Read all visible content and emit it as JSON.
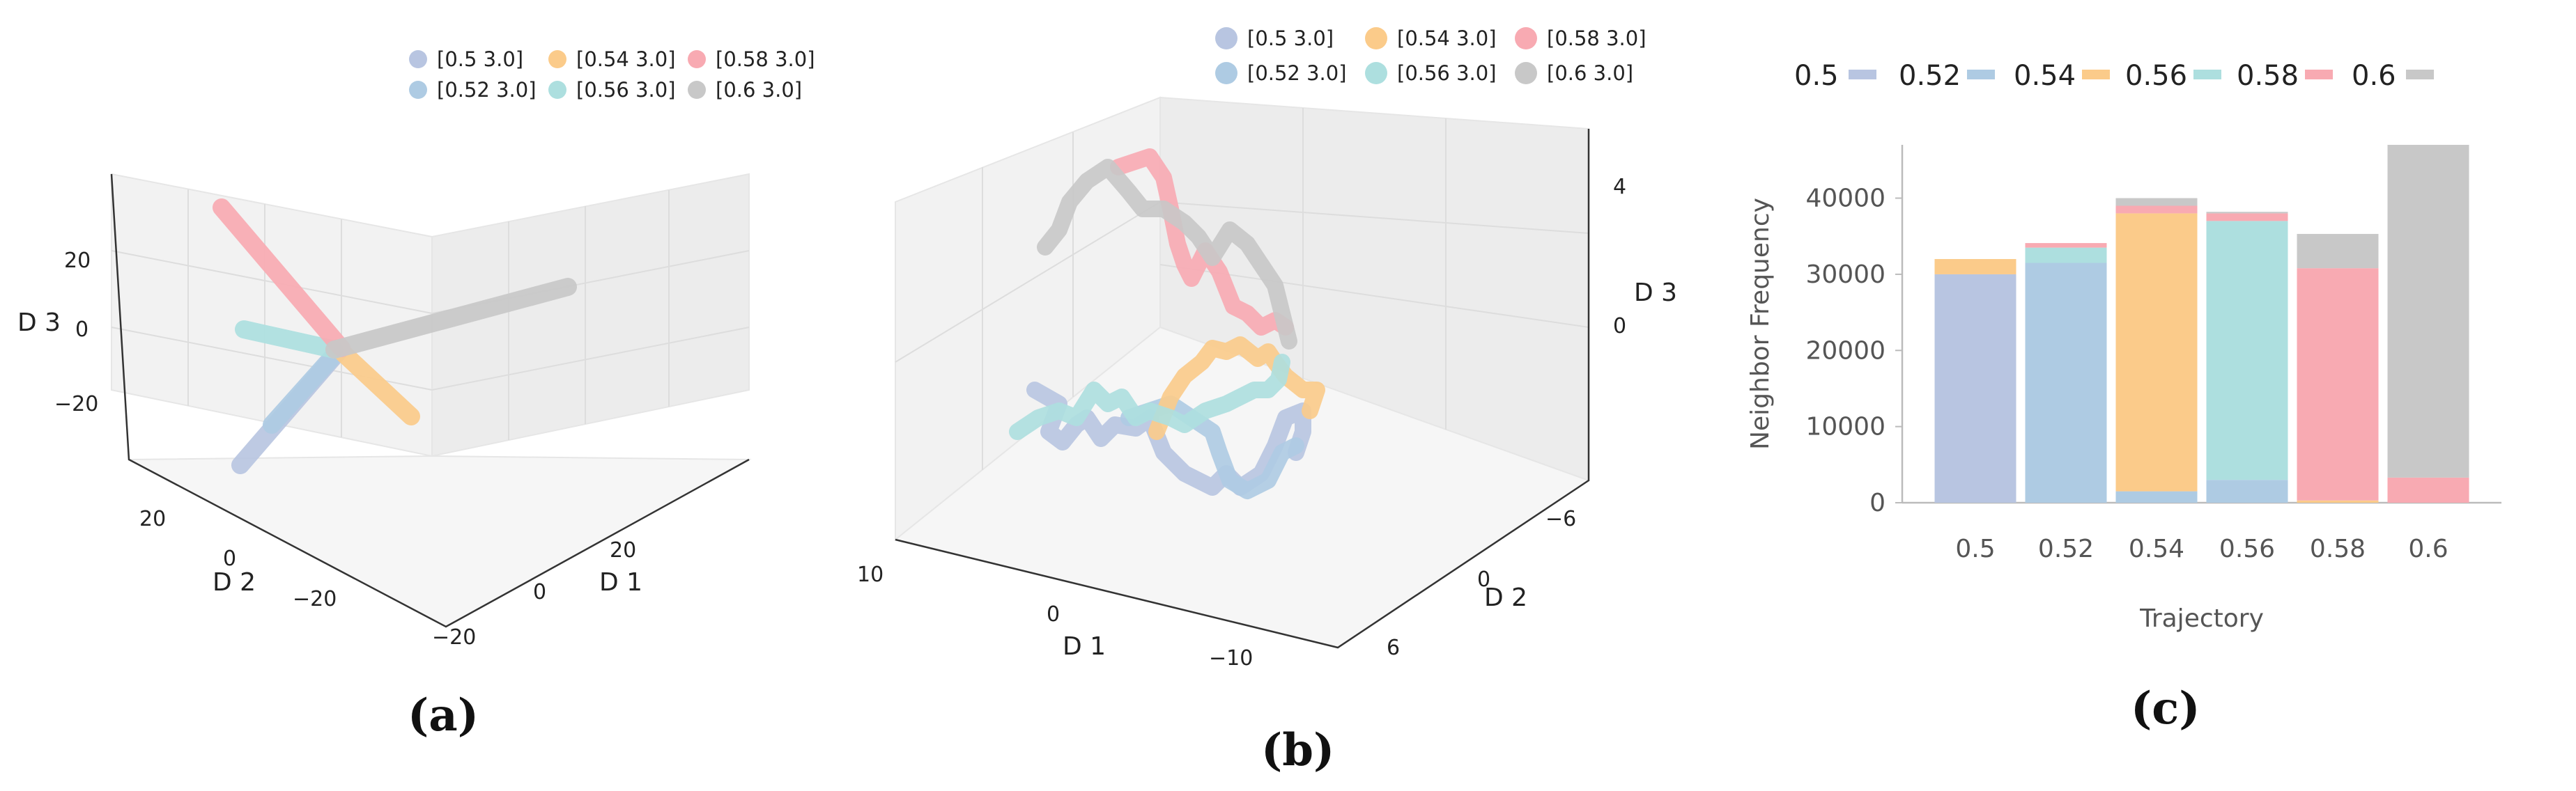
{
  "panel_labels": {
    "a": "(a)",
    "b": "(b)",
    "c": "(c)"
  },
  "colors": {
    "c05": "#b8c5e1",
    "c052": "#aecbe3",
    "c054": "#fbcb8a",
    "c056": "#addfdf",
    "c058": "#f8aab2",
    "c06": "#c8c8c8"
  },
  "chart_data": [
    {
      "id": "a",
      "type": "scatter",
      "projection": "3d",
      "title": "",
      "xlabel": "D 1",
      "ylabel": "D 2",
      "zlabel": "D 3",
      "x_ticks": [
        "−20",
        "0",
        "20"
      ],
      "y_ticks": [
        "20",
        "0",
        "−20"
      ],
      "z_ticks": [
        "20",
        "0",
        "−20"
      ],
      "legend_position": "top",
      "series": [
        {
          "name": "[0.5 3.0]",
          "color": "#b8c5e1"
        },
        {
          "name": "[0.52 3.0]",
          "color": "#aecbe3"
        },
        {
          "name": "[0.54 3.0]",
          "color": "#fbcb8a"
        },
        {
          "name": "[0.56 3.0]",
          "color": "#addfdf"
        },
        {
          "name": "[0.58 3.0]",
          "color": "#f8aab2"
        },
        {
          "name": "[0.6 3.0]",
          "color": "#c8c8c8"
        }
      ]
    },
    {
      "id": "b",
      "type": "scatter",
      "projection": "3d",
      "title": "",
      "xlabel": "D 1",
      "ylabel": "D 2",
      "zlabel": "D 3",
      "x_ticks": [
        "10",
        "0",
        "−10"
      ],
      "y_ticks": [
        "−6",
        "0",
        "6"
      ],
      "z_ticks": [
        "4",
        "0"
      ],
      "legend_position": "top",
      "series": [
        {
          "name": "[0.5 3.0]",
          "color": "#b8c5e1"
        },
        {
          "name": "[0.52 3.0]",
          "color": "#aecbe3"
        },
        {
          "name": "[0.54 3.0]",
          "color": "#fbcb8a"
        },
        {
          "name": "[0.56 3.0]",
          "color": "#addfdf"
        },
        {
          "name": "[0.58 3.0]",
          "color": "#f8aab2"
        },
        {
          "name": "[0.6 3.0]",
          "color": "#c8c8c8"
        }
      ]
    },
    {
      "id": "c",
      "type": "bar",
      "stacked": true,
      "title": "",
      "xlabel": "Trajectory",
      "ylabel": "Neighbor Frequency",
      "categories": [
        "0.5",
        "0.52",
        "0.54",
        "0.56",
        "0.58",
        "0.6"
      ],
      "ylim": [
        0,
        47000
      ],
      "yticks": [
        0,
        10000,
        20000,
        30000,
        40000
      ],
      "legend_position": "top",
      "series": [
        {
          "name": "0.5",
          "color": "#b8c5e1",
          "values": [
            30000,
            0,
            0,
            0,
            0,
            0
          ]
        },
        {
          "name": "0.52",
          "color": "#aecbe3",
          "values": [
            0,
            31500,
            1500,
            3000,
            0,
            0
          ]
        },
        {
          "name": "0.54",
          "color": "#fbcb8a",
          "values": [
            2000,
            0,
            36500,
            0,
            300,
            0
          ]
        },
        {
          "name": "0.56",
          "color": "#addfdf",
          "values": [
            0,
            2000,
            0,
            34000,
            0,
            0
          ]
        },
        {
          "name": "0.58",
          "color": "#f8aab2",
          "values": [
            0,
            600,
            1000,
            1000,
            30500,
            3300
          ]
        },
        {
          "name": "0.6",
          "color": "#c8c8c8",
          "values": [
            0,
            0,
            1000,
            200,
            4500,
            43700
          ]
        }
      ]
    }
  ]
}
